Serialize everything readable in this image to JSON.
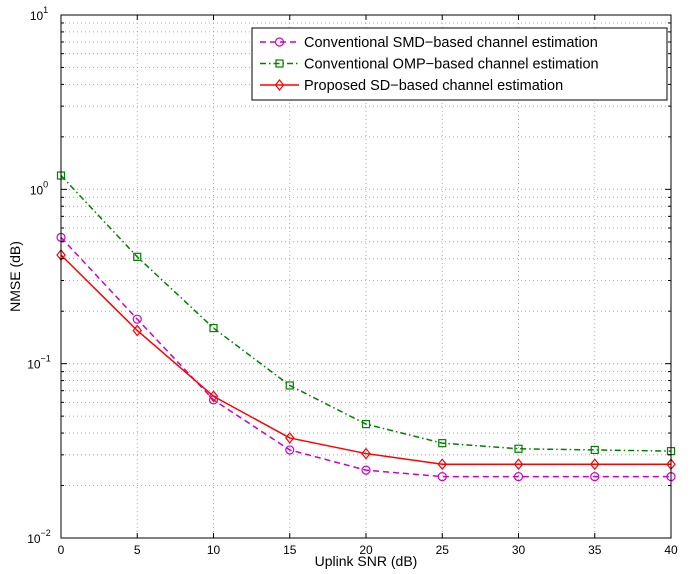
{
  "chart_data": {
    "type": "line",
    "title": "",
    "xlabel": "Uplink SNR (dB)",
    "ylabel": "NMSE (dB)",
    "x": [
      0,
      5,
      10,
      15,
      20,
      25,
      30,
      35,
      40
    ],
    "xlim": [
      0,
      40
    ],
    "xticks": [
      0,
      5,
      10,
      15,
      20,
      25,
      30,
      35,
      40
    ],
    "ylim": [
      0.01,
      10
    ],
    "yscale": "log",
    "yticks": [
      {
        "value": 0.01,
        "base": "10",
        "exp": "−2"
      },
      {
        "value": 0.1,
        "base": "10",
        "exp": "−1"
      },
      {
        "value": 1,
        "base": "10",
        "exp": "0"
      },
      {
        "value": 10,
        "base": "10",
        "exp": "1"
      }
    ],
    "grid": true,
    "legend_position": "top-right",
    "series": [
      {
        "name": "Conventional SMD−based channel estimation",
        "values": [
          0.53,
          0.18,
          0.062,
          0.032,
          0.0245,
          0.0225,
          0.0225,
          0.0225,
          0.0225
        ],
        "color": "#cc00cc",
        "dash": "dashed",
        "marker": "circle"
      },
      {
        "name": "Conventional OMP−based channel estimation",
        "values": [
          1.2,
          0.41,
          0.16,
          0.075,
          0.045,
          0.035,
          0.0325,
          0.032,
          0.0315
        ],
        "color": "#008000",
        "dash": "dashdot",
        "marker": "square"
      },
      {
        "name": "Proposed SD−based channel estimation",
        "values": [
          0.42,
          0.155,
          0.065,
          0.0375,
          0.0305,
          0.0265,
          0.0265,
          0.0265,
          0.0265
        ],
        "color": "#ff0000",
        "dash": "solid",
        "marker": "diamond"
      }
    ]
  }
}
